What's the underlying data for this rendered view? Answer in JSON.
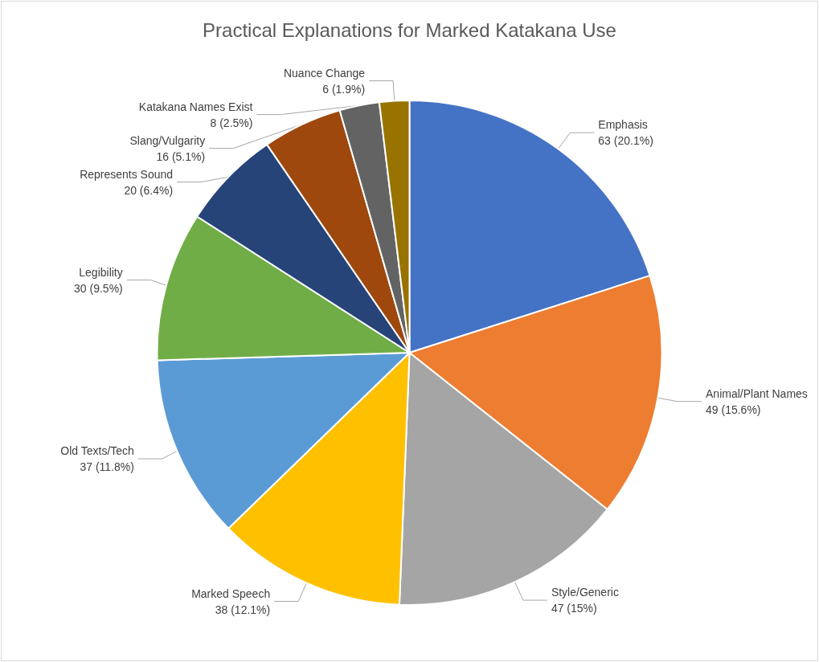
{
  "chart_data": {
    "type": "pie",
    "title": "Practical Explanations for Marked Katakana Use",
    "categories": [
      "Emphasis",
      "Animal/Plant Names",
      "Style/Generic",
      "Marked Speech",
      "Old Texts/Tech",
      "Legibility",
      "Represents Sound",
      "Slang/Vulgarity",
      "Katakana Names Exist",
      "Nuance Change"
    ],
    "values": [
      63,
      49,
      47,
      38,
      37,
      30,
      20,
      16,
      8,
      6
    ],
    "colors": [
      "#4472c4",
      "#ed7d31",
      "#a5a5a5",
      "#ffc000",
      "#5b9bd5",
      "#70ad47",
      "#264478",
      "#9e480e",
      "#636363",
      "#997300"
    ],
    "value_labels": [
      "63 (20.1%)",
      "49 (15.6%)",
      "47 (15%)",
      "38 (12.1%)",
      "37 (11.8%)",
      "30 (9.5%)",
      "20 (6.4%)",
      "16 (5.1%)",
      "8 (2.5%)",
      "6 (1.9%)"
    ]
  }
}
